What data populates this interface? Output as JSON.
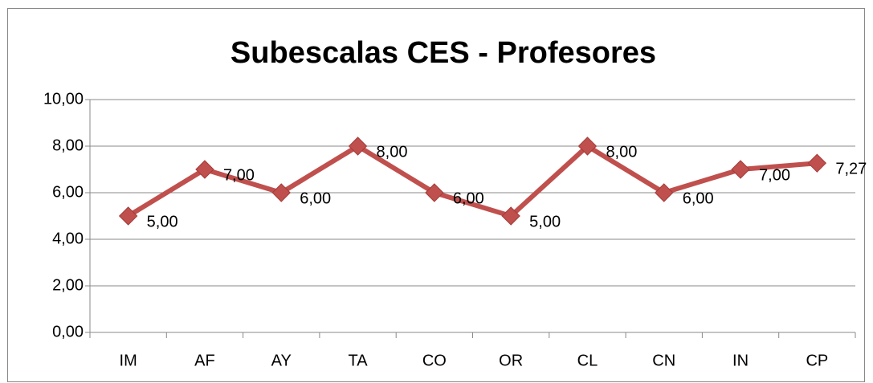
{
  "chart_data": {
    "type": "line",
    "title": "Subescalas CES - Profesores",
    "categories": [
      "IM",
      "AF",
      "AY",
      "TA",
      "CO",
      "OR",
      "CL",
      "CN",
      "IN",
      "CP"
    ],
    "values": [
      5,
      7,
      6,
      8,
      6,
      5,
      8,
      6,
      7,
      7.27
    ],
    "value_labels": [
      "5,00",
      "7,00",
      "6,00",
      "8,00",
      "6,00",
      "5,00",
      "8,00",
      "6,00",
      "7,00",
      "7,27"
    ],
    "color": "#c0504d",
    "ylim": [
      0,
      10
    ],
    "yticks": [
      {
        "value": 0,
        "label": "0,00"
      },
      {
        "value": 2,
        "label": "2,00"
      },
      {
        "value": 4,
        "label": "4,00"
      },
      {
        "value": 6,
        "label": "6,00"
      },
      {
        "value": 8,
        "label": "8,00"
      },
      {
        "value": 10,
        "label": "10,00"
      }
    ],
    "grid": true
  }
}
